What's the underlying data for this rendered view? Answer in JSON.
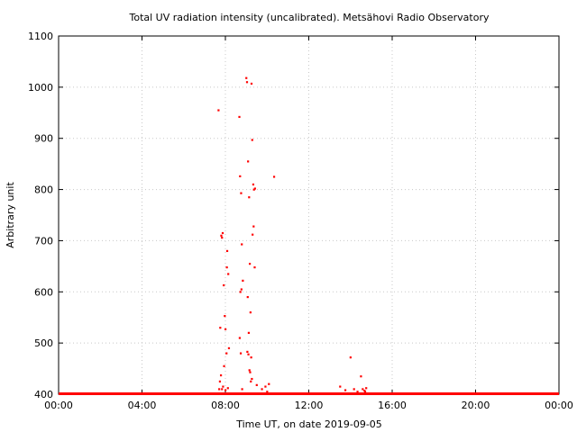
{
  "chart_data": {
    "type": "scatter",
    "title": "Total UV radiation intensity (uncalibrated). Metsähovi Radio Observatory",
    "xlabel": "Time UT, on date 2019-09-05",
    "ylabel": "Arbitrary unit",
    "xlim": [
      "00:00",
      "24:00"
    ],
    "ylim": [
      400,
      1100
    ],
    "x_ticks": [
      "00:00",
      "04:00",
      "08:00",
      "12:00",
      "16:00",
      "20:00",
      "00:00"
    ],
    "y_ticks": [
      400,
      500,
      600,
      700,
      800,
      900,
      1000,
      1100
    ],
    "grid": true,
    "legend": "none",
    "marker_color": "#ff0000",
    "baseline": {
      "y": 400,
      "x_from": "00:00",
      "x_to": "24:00"
    },
    "series": [
      {
        "x": [
          "07:40",
          "07:45",
          "07:48",
          "07:50",
          "07:52",
          "07:55",
          "07:58",
          "08:00",
          "08:03",
          "08:05",
          "08:08",
          "08:10",
          "07:42",
          "07:44",
          "07:47",
          "07:50",
          "07:53",
          "07:56",
          "08:00",
          "08:04",
          "08:07",
          "08:40",
          "08:42",
          "08:45",
          "08:47",
          "08:50",
          "08:43",
          "08:46",
          "08:41",
          "08:44",
          "08:48",
          "09:00",
          "09:02",
          "09:05",
          "09:08",
          "09:10",
          "09:12",
          "09:14",
          "09:03",
          "09:06",
          "09:09",
          "09:11",
          "09:13",
          "09:15",
          "09:17",
          "09:20",
          "09:22",
          "09:25",
          "09:18",
          "09:21",
          "09:24",
          "09:04",
          "09:07",
          "09:16",
          "09:30",
          "09:45",
          "09:55",
          "10:00",
          "10:05",
          "10:20",
          "13:30",
          "13:45",
          "14:00",
          "14:10",
          "14:20",
          "14:30",
          "14:35",
          "14:40",
          "14:45",
          "14:42"
        ],
        "y": [
          955,
          530,
          710,
          706,
          715,
          613,
          553,
          527,
          480,
          680,
          635,
          490,
          410,
          425,
          437,
          410,
          415,
          455,
          408,
          648,
          412,
          942,
          826,
          793,
          693,
          622,
          600,
          605,
          510,
          480,
          410,
          1018,
          1010,
          855,
          785,
          655,
          560,
          472,
          483,
          478,
          447,
          443,
          425,
          1007,
          897,
          810,
          800,
          802,
          712,
          728,
          648,
          590,
          520,
          430,
          418,
          410,
          415,
          405,
          420,
          825,
          415,
          408,
          472,
          410,
          405,
          435,
          410,
          407,
          412,
          405
        ]
      }
    ]
  }
}
